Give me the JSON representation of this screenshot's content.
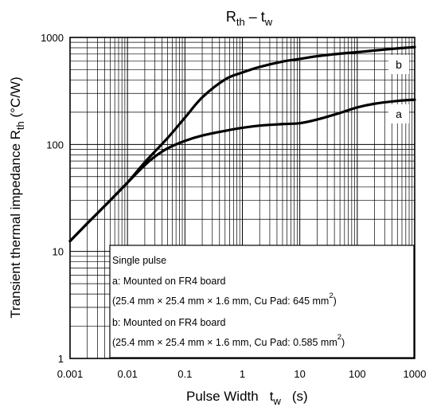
{
  "chart_data": {
    "type": "line",
    "title": {
      "main": "R",
      "main_sub": "th",
      "dash": " – ",
      "var": "t",
      "var_sub": "w"
    },
    "xlabel": {
      "text": "Pulse Width",
      "sym": "t",
      "sym_sub": "w",
      "unit": "(s)"
    },
    "ylabel": {
      "text": "Transient thermal impedance R",
      "sub": "th",
      "unit": " (°C/W)"
    },
    "x_scale": "log",
    "y_scale": "log",
    "xlim": [
      0.001,
      1000
    ],
    "ylim": [
      1,
      1000
    ],
    "x_ticks": [
      0.001,
      0.01,
      0.1,
      1,
      10,
      100,
      1000
    ],
    "x_tick_labels": [
      "0.001",
      "0.01",
      "0.1",
      "1",
      "10",
      "100",
      "1000"
    ],
    "y_ticks": [
      1,
      10,
      100,
      1000
    ],
    "y_tick_labels": [
      "1",
      "10",
      "100",
      "1000"
    ],
    "grid": true,
    "series": [
      {
        "name": "a",
        "x": [
          0.001,
          0.002,
          0.005,
          0.01,
          0.02,
          0.03,
          0.05,
          0.1,
          0.2,
          0.5,
          1,
          2,
          5,
          10,
          20,
          50,
          100,
          200,
          500,
          1000
        ],
        "y": [
          12.5,
          18.3,
          30,
          44,
          64,
          77,
          92,
          108,
          121,
          134,
          143,
          150,
          155,
          158,
          171,
          197,
          222,
          240,
          255,
          262
        ]
      },
      {
        "name": "b",
        "x": [
          0.001,
          0.002,
          0.005,
          0.01,
          0.02,
          0.05,
          0.1,
          0.2,
          0.5,
          1,
          2,
          5,
          10,
          20,
          50,
          100,
          200,
          500,
          1000
        ],
        "y": [
          12.5,
          18.3,
          30,
          44,
          68,
          115,
          178,
          275,
          405,
          470,
          530,
          595,
          630,
          668,
          705,
          728,
          755,
          790,
          812
        ]
      }
    ],
    "legend": {
      "placement": "bottom-right",
      "lines": [
        {
          "text": "Single pulse"
        },
        {
          "text": "a: Mounted on FR4 board"
        },
        {
          "text": "(25.4 mm × 25.4 mm × 1.6 mm, Cu Pad: 645 mm",
          "sup": "2",
          "close": ")"
        },
        {
          "text": "b: Mounted on FR4 board"
        },
        {
          "text": "(25.4 mm × 25.4 mm × 1.6 mm, Cu Pad: 0.585 mm",
          "sup": "2",
          "close": ")"
        }
      ]
    }
  }
}
